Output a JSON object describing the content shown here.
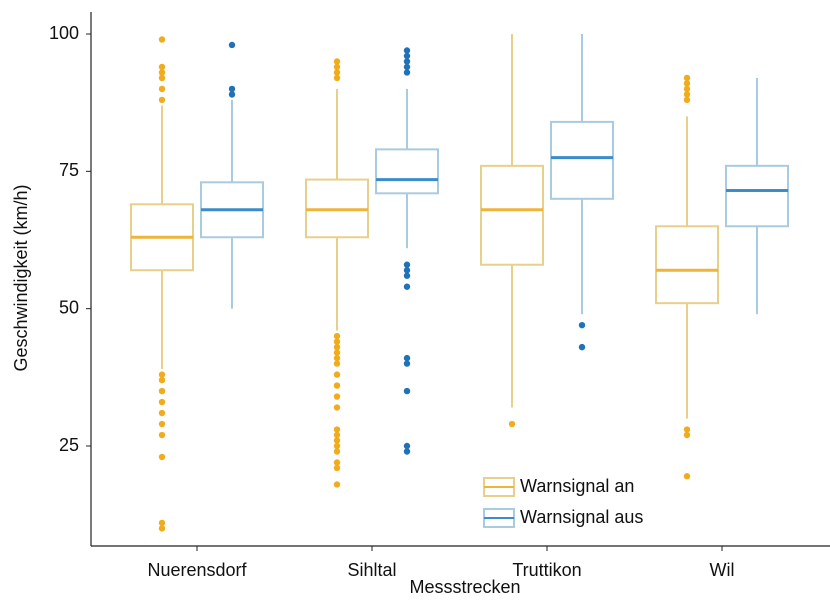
{
  "chart_data": {
    "type": "boxplot",
    "xlabel": "Messstrecken",
    "ylabel": "Geschwindigkeit (km/h)",
    "ylim": [
      8,
      102
    ],
    "yticks": [
      25,
      50,
      75,
      100
    ],
    "categories": [
      "Nuerensdorf",
      "Sihltal",
      "Truttikon",
      "Wil"
    ],
    "legend": {
      "placement": "bottom-right"
    },
    "series": [
      {
        "name": "Warnsignal an",
        "color": "#e8cf8a",
        "median_color": "#f0b43a",
        "outlier_color": "#f0ac1c",
        "boxes": [
          {
            "q1": 57,
            "median": 63,
            "q3": 69,
            "whisker_low": 39,
            "whisker_high": 87,
            "outliers": [
              99,
              94,
              93,
              92,
              90,
              88,
              38,
              37,
              35,
              33,
              31,
              29,
              27,
              23,
              11,
              10
            ]
          },
          {
            "q1": 63,
            "median": 68,
            "q3": 73.5,
            "whisker_low": 46,
            "whisker_high": 90,
            "outliers": [
              95,
              94,
              93,
              92,
              45,
              44,
              43,
              42,
              41,
              40,
              38,
              36,
              34,
              32,
              28,
              27,
              26,
              25,
              24,
              22,
              21,
              18
            ]
          },
          {
            "q1": 58,
            "median": 68,
            "q3": 76,
            "whisker_low": 32,
            "whisker_high": 100,
            "outliers": [
              29
            ]
          },
          {
            "q1": 51,
            "median": 57,
            "q3": 65,
            "whisker_low": 30,
            "whisker_high": 85,
            "outliers": [
              92,
              91,
              90,
              89,
              88,
              28,
              27,
              19.5
            ]
          }
        ]
      },
      {
        "name": "Warnsignal aus",
        "color": "#a9cbe0",
        "median_color": "#3a8ccc",
        "outlier_color": "#1f72b8",
        "boxes": [
          {
            "q1": 63,
            "median": 68,
            "q3": 73,
            "whisker_low": 50,
            "whisker_high": 88,
            "outliers": [
              98,
              90,
              89
            ]
          },
          {
            "q1": 71,
            "median": 73.5,
            "q3": 79,
            "whisker_low": 61,
            "whisker_high": 90,
            "outliers": [
              97,
              96,
              95,
              94,
              93,
              58,
              57,
              56,
              54,
              41,
              40,
              35,
              25,
              24
            ]
          },
          {
            "q1": 70,
            "median": 77.5,
            "q3": 84,
            "whisker_low": 49,
            "whisker_high": 100,
            "outliers": [
              47,
              43
            ]
          },
          {
            "q1": 65,
            "median": 71.5,
            "q3": 76,
            "whisker_low": 49,
            "whisker_high": 92,
            "outliers": []
          }
        ]
      }
    ]
  }
}
